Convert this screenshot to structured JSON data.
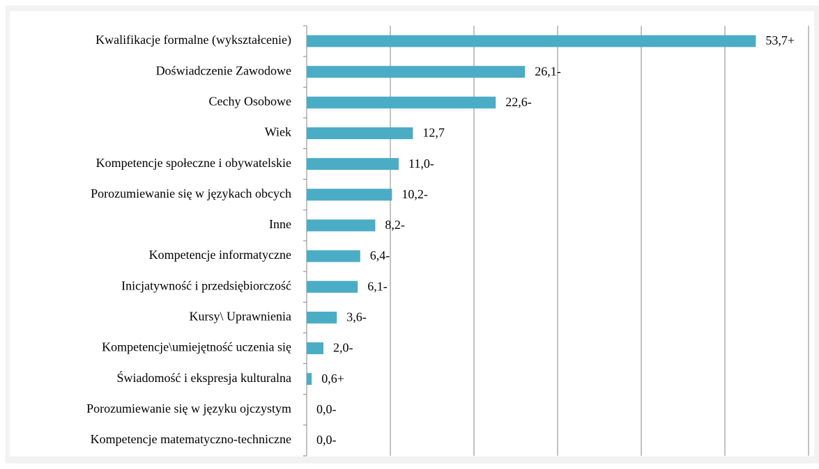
{
  "chart_data": {
    "type": "bar",
    "orientation": "horizontal",
    "categories": [
      "Kwalifikacje formalne (wykształcenie)",
      "Doświadczenie Zawodowe",
      "Cechy Osobowe",
      "Wiek",
      "Kompetencje społeczne i obywatelskie",
      "Porozumiewanie się w językach obcych",
      "Inne",
      "Kompetencje informatyczne",
      "Inicjatywność i przedsiębiorczość",
      "Kursy\\ Uprawnienia",
      "Kompetencje\\umiejętność uczenia się",
      "Świadomość i ekspresja kulturalna",
      "Porozumiewanie się w języku ojczystym",
      "Kompetencje matematyczno-techniczne"
    ],
    "values": [
      53.7,
      26.1,
      22.6,
      12.7,
      11.0,
      10.2,
      8.2,
      6.4,
      6.1,
      3.6,
      2.0,
      0.6,
      0.0,
      0.0
    ],
    "value_labels": [
      "53,7+",
      "26,1-",
      "22,6-",
      "12,7",
      "11,0-",
      "10,2-",
      "8,2-",
      "6,4-",
      "6,1-",
      "3,6-",
      "2,0-",
      "0,6+",
      "0,0-",
      "0,0-"
    ],
    "color": "#4bacc6",
    "xlim": [
      0,
      60
    ],
    "xticks": [
      0,
      10,
      20,
      30,
      40,
      50,
      60
    ],
    "grid": true
  }
}
